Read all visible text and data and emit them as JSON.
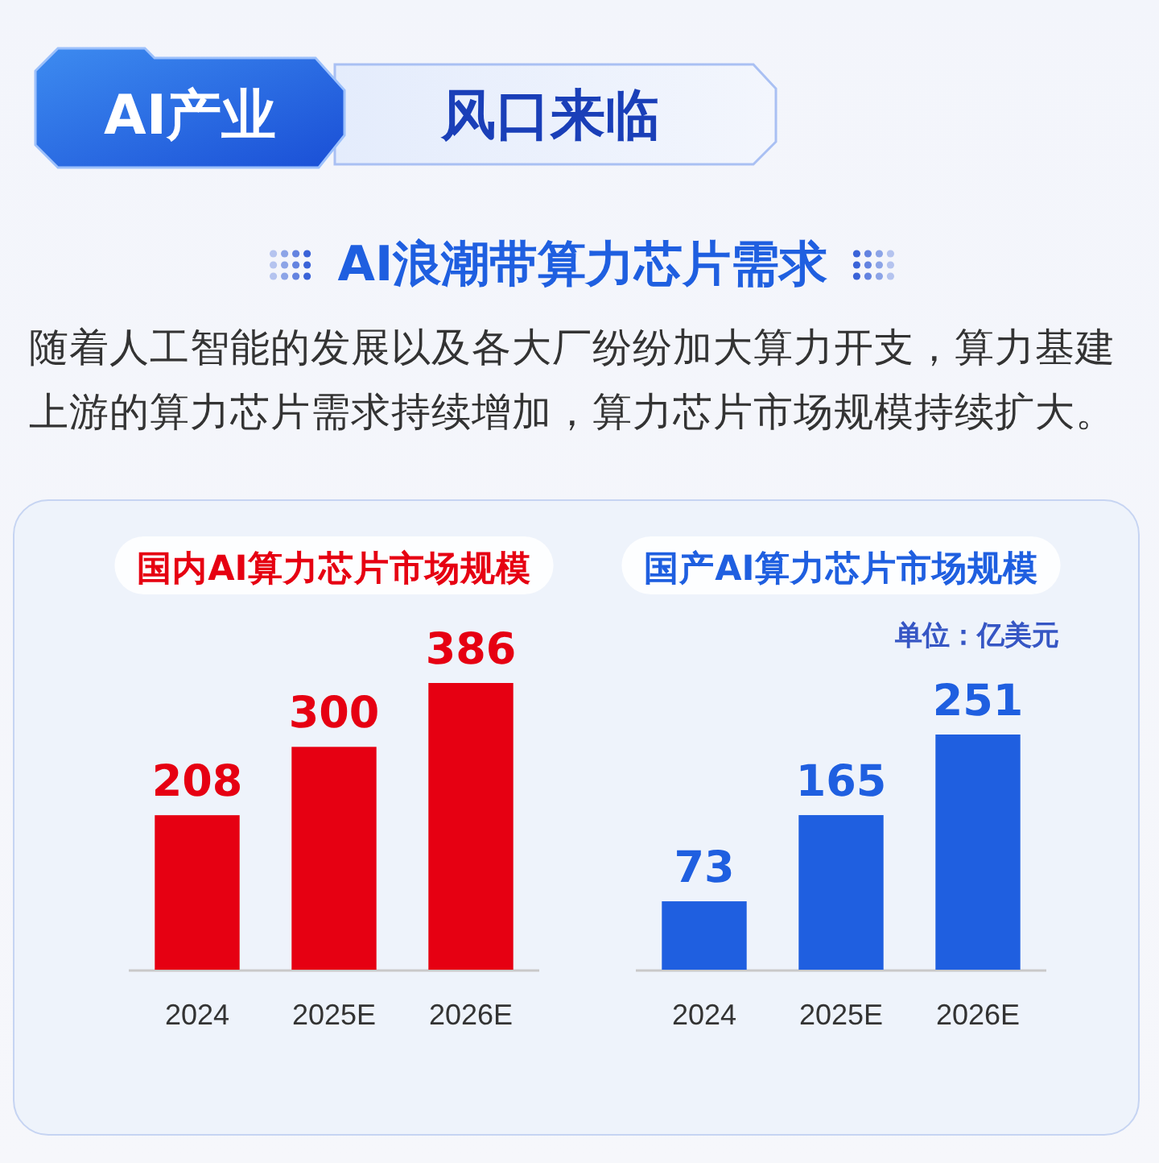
{
  "chart_data": [
    {
      "type": "other",
      "title": "AI浪潮带算力芯片需求",
      "subtitle": "随着人工智能的发展以及各大厂纷纷加大算力开支，算力基建上游的算力芯片需求持续增加，算力芯片市场规模持续扩大。",
      "annotations": [
        "AI产业",
        "风口来临"
      ]
    },
    {
      "type": "bar",
      "title": "国内AI算力芯片市场规模",
      "categories": [
        "2024",
        "2025E",
        "2026E"
      ],
      "values": [
        208,
        300,
        386
      ],
      "color": "#e60012",
      "data_labels": true
    },
    {
      "type": "bar",
      "title": "国产AI算力芯片市场规模",
      "annotations": [
        "单位：亿美元"
      ],
      "categories": [
        "2024",
        "2025E",
        "2026E"
      ],
      "values": [
        73,
        165,
        251
      ],
      "color": "#1f5fe0",
      "data_labels": true
    }
  ]
}
